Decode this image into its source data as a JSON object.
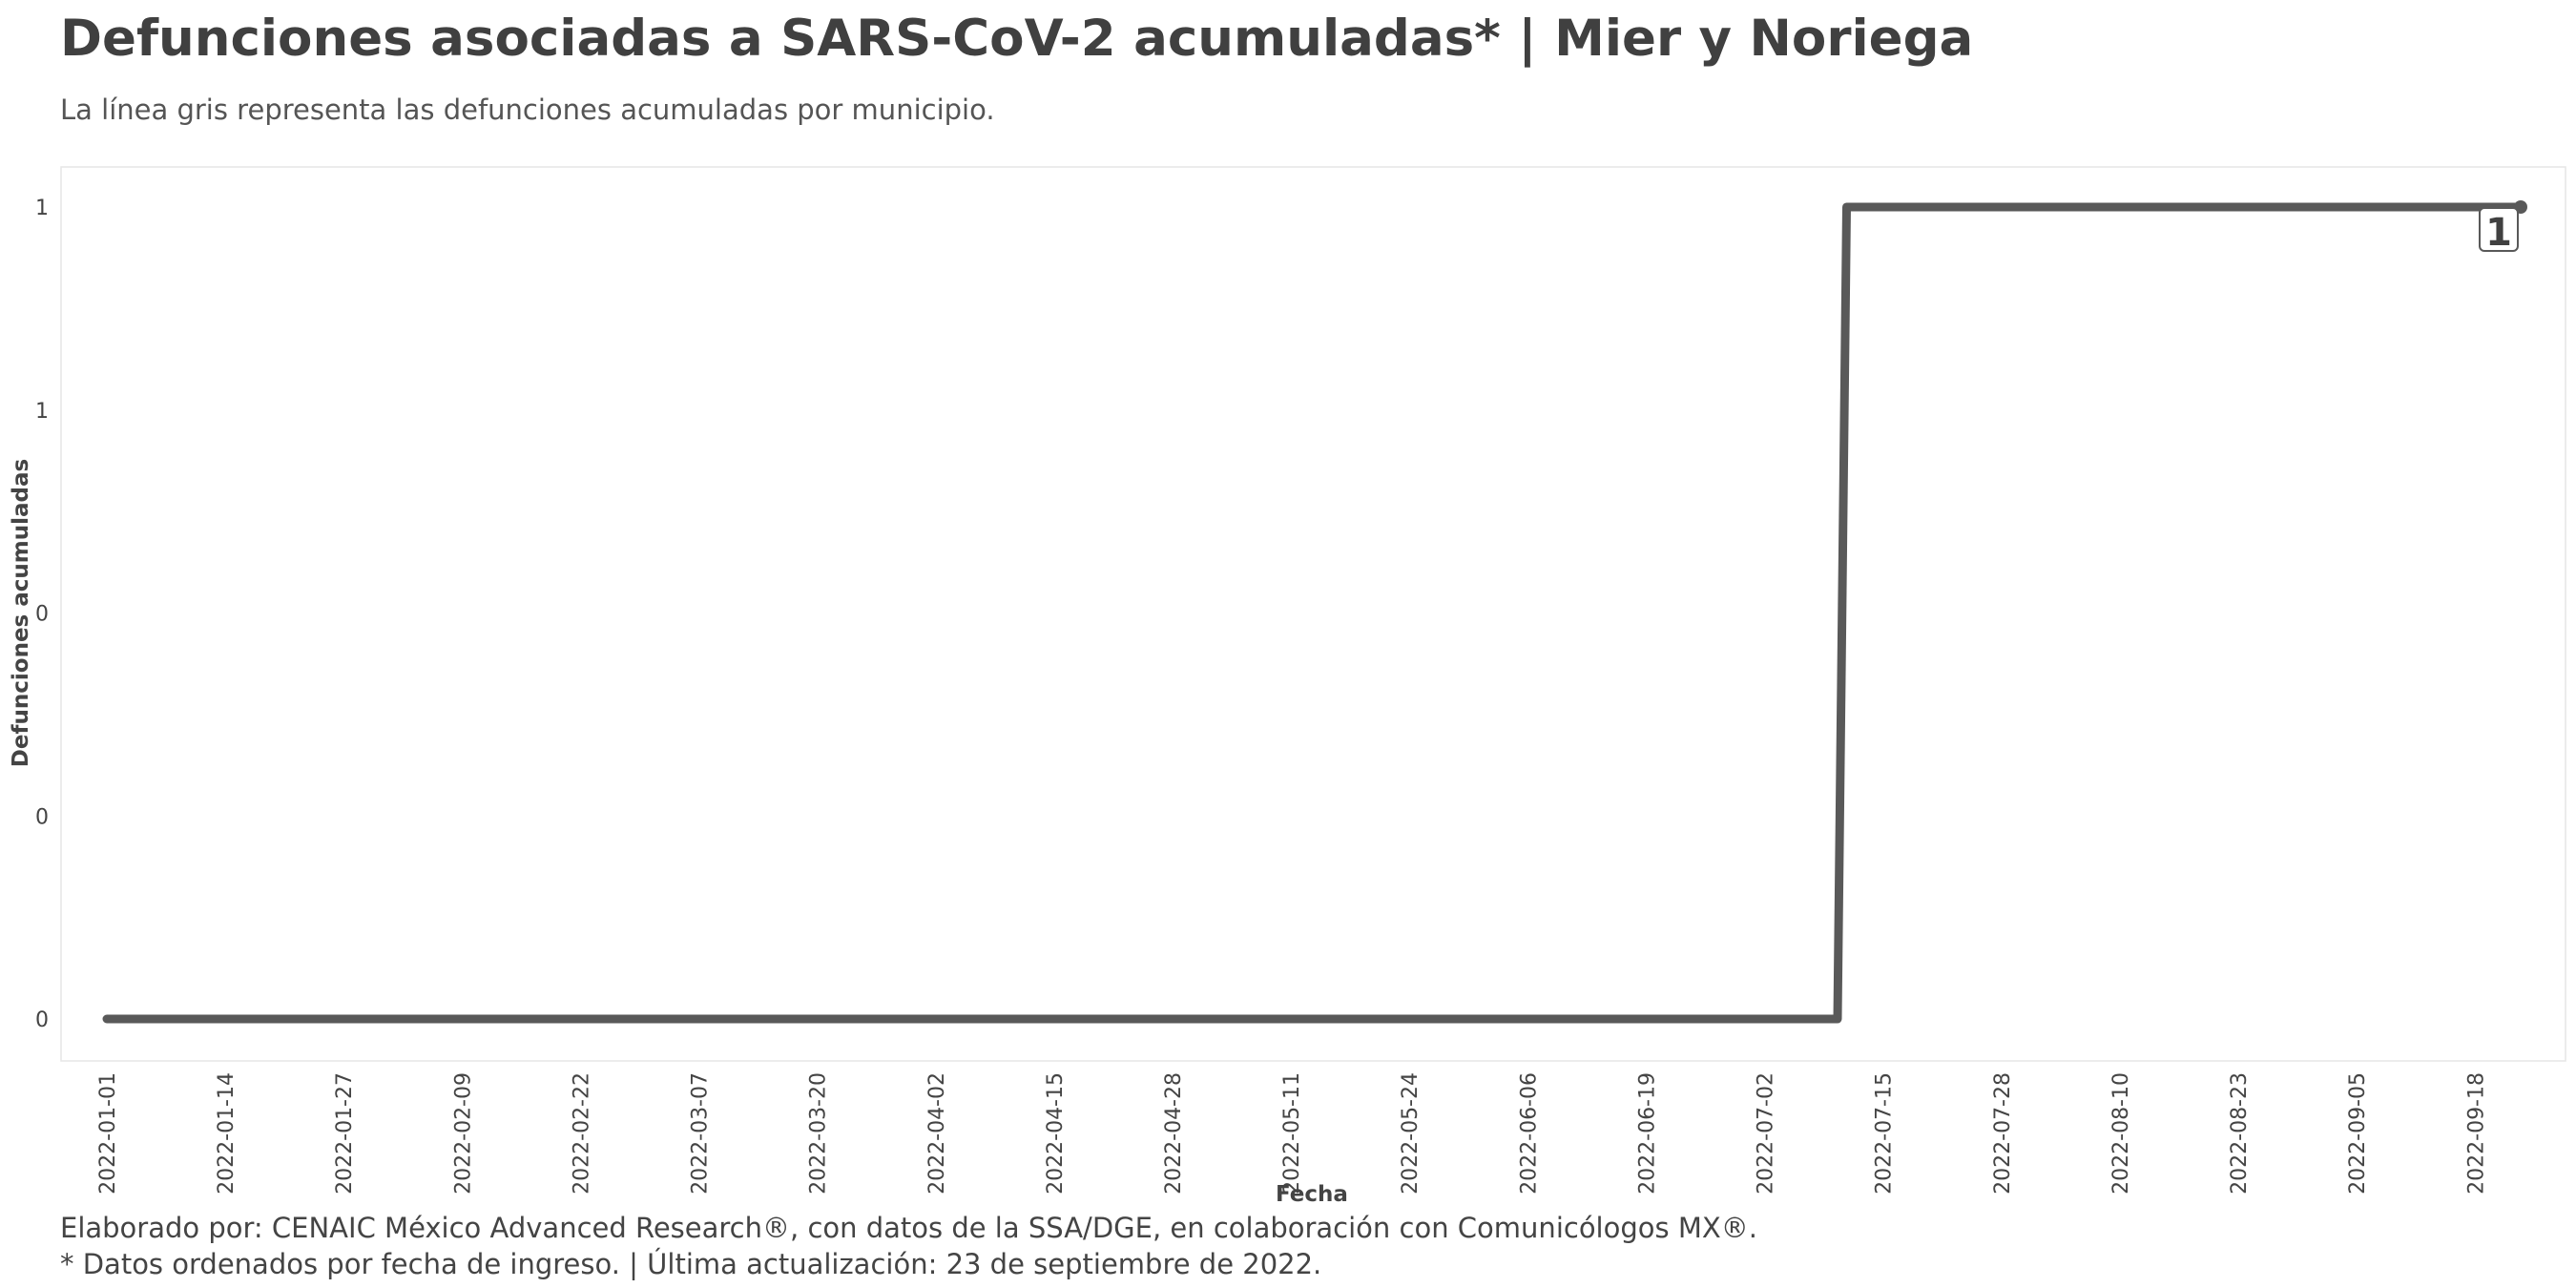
{
  "header": {
    "title": "Defunciones asociadas a SARS-CoV-2 acumuladas* | Mier y Noriega",
    "subtitle": "La línea gris representa las defunciones acumuladas por municipio."
  },
  "caption": {
    "line1": "Elaborado por: CENAIC México Advanced Research®, con datos de la SSA/DGE, en colaboración con Comunicólogos MX®.",
    "line2": "* Datos ordenados por fecha de ingreso. | Última actualización: 23 de septiembre de 2022."
  },
  "chart_data": {
    "type": "line",
    "xlabel": "Fecha",
    "ylabel": "Defunciones acumuladas",
    "x_range": [
      "2022-01-01",
      "2022-09-23"
    ],
    "ylim": [
      0,
      1
    ],
    "y_tick_values": [
      0,
      0.25,
      0.5,
      0.75,
      1
    ],
    "y_tick_labels": [
      "0",
      "0",
      "0",
      "1",
      "1"
    ],
    "x_tick_labels": [
      "2022-01-01",
      "2022-01-14",
      "2022-01-27",
      "2022-02-09",
      "2022-02-22",
      "2022-03-07",
      "2022-03-20",
      "2022-04-02",
      "2022-04-15",
      "2022-04-28",
      "2022-05-11",
      "2022-05-24",
      "2022-06-06",
      "2022-06-19",
      "2022-07-02",
      "2022-07-15",
      "2022-07-28",
      "2022-08-10",
      "2022-08-23",
      "2022-09-05",
      "2022-09-18"
    ],
    "series": [
      {
        "color": "#595959",
        "points": [
          {
            "x": "2022-01-01",
            "y": 0
          },
          {
            "x": "2022-07-10",
            "y": 0
          },
          {
            "x": "2022-07-11",
            "y": 1
          },
          {
            "x": "2022-09-23",
            "y": 1
          }
        ]
      }
    ],
    "end_label": "1",
    "grid": false
  }
}
